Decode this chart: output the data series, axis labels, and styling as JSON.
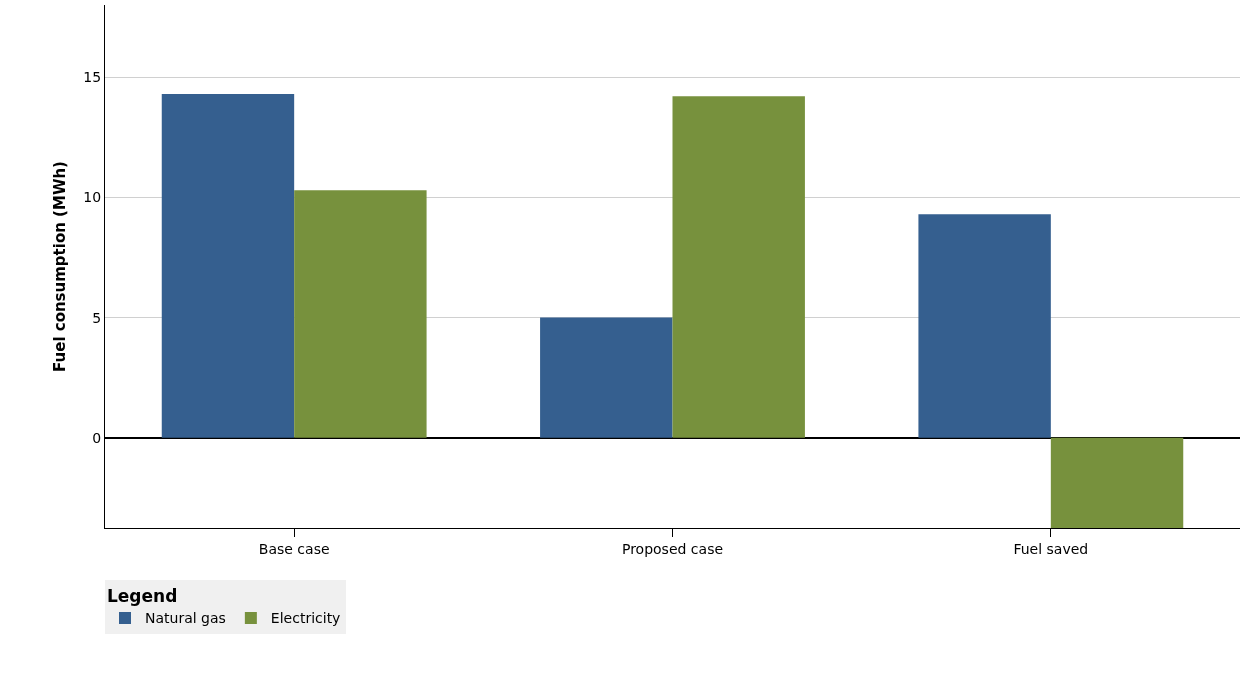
{
  "chart_data": {
    "type": "bar",
    "ylabel": "Fuel consumption (MWh)",
    "categories": [
      "Base case",
      "Proposed case",
      "Fuel saved"
    ],
    "series": [
      {
        "name": "Natural gas",
        "color": "#355f8f",
        "values": [
          14.3,
          5.0,
          9.3
        ]
      },
      {
        "name": "Electricity",
        "color": "#77913d",
        "values": [
          10.3,
          14.2,
          -3.75
        ]
      }
    ],
    "ylim": [
      -3.75,
      18
    ],
    "yticks": [
      0,
      5,
      10,
      15
    ],
    "grid": "y",
    "legend": "bottom left",
    "legend_title": "Legend"
  }
}
